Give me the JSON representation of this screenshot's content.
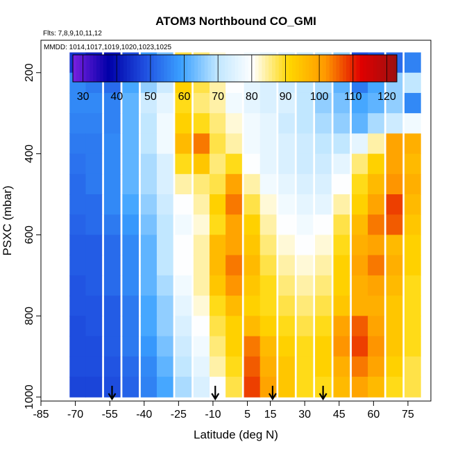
{
  "chart_data": {
    "type": "heatmap",
    "title": "ATOM3 Northbound CO_GMI",
    "subtitle_flights": "Flts: 7,8,9,10,11,12",
    "subtitle_dates": "MMDD: 1014,1017,1019,1020,1023,1025",
    "xlabel": "Latitude (deg N)",
    "ylabel": "PSXC (mbar)",
    "xlim": [
      -85,
      85
    ],
    "ylim": [
      1010,
      120
    ],
    "y_reversed": true,
    "x_ticks": [
      -85,
      -70,
      -55,
      -40,
      -25,
      -10,
      5,
      15,
      30,
      45,
      60,
      75
    ],
    "x_tick_labels": [
      "-85",
      "-70",
      "-55",
      "-40",
      "-25",
      "-10",
      "5",
      "15",
      "30",
      "45",
      "60",
      "75"
    ],
    "y_ticks": [
      200,
      400,
      600,
      800,
      1000
    ],
    "y_tick_labels": [
      "200",
      "400",
      "600",
      "800",
      "1000"
    ],
    "colorbar": {
      "min": 27,
      "max": 123,
      "ticks": [
        30,
        40,
        50,
        60,
        70,
        80,
        90,
        100,
        110,
        120
      ],
      "tick_labels": [
        "30",
        "40",
        "50",
        "60",
        "70",
        "80",
        "90",
        "100",
        "110",
        "120"
      ],
      "colors": [
        "#7a1fe0",
        "#0000a8",
        "#1f4fe0",
        "#3aa0ff",
        "#bfe6ff",
        "#ffffff",
        "#ffd700",
        "#ff9a00",
        "#e00000",
        "#9b1010"
      ]
    },
    "profile_markers_lat": [
      -54,
      -9,
      16,
      38
    ],
    "latitudes": [
      -69,
      -62,
      -54,
      -46,
      -38,
      -31,
      -23,
      -15,
      -8,
      -1,
      7,
      14,
      22,
      30,
      38,
      46,
      54,
      61,
      69,
      77
    ],
    "pressures": [
      175,
      225,
      275,
      325,
      375,
      425,
      475,
      525,
      575,
      625,
      675,
      725,
      775,
      825,
      875,
      925,
      975
    ],
    "values": [
      [
        45,
        42,
        40,
        48,
        58,
        64,
        88,
        86,
        82,
        80,
        78,
        76,
        74,
        72,
        70,
        66,
        48,
        50,
        52,
        55
      ],
      [
        56,
        54,
        52,
        60,
        66,
        72,
        92,
        88,
        84,
        80,
        76,
        74,
        72,
        70,
        68,
        62,
        54,
        60,
        66,
        70
      ],
      [
        56,
        56,
        55,
        62,
        72,
        76,
        90,
        86,
        84,
        78,
        76,
        74,
        74,
        70,
        66,
        64,
        60,
        62,
        66,
        56
      ],
      [
        55,
        55,
        55,
        62,
        70,
        78,
        92,
        90,
        86,
        82,
        78,
        76,
        72,
        70,
        68,
        66,
        62,
        68,
        72,
        78
      ],
      [
        54,
        54,
        56,
        62,
        70,
        78,
        96,
        104,
        88,
        84,
        78,
        76,
        74,
        72,
        70,
        70,
        76,
        84,
        100,
        98
      ],
      [
        53,
        54,
        56,
        62,
        68,
        74,
        90,
        94,
        86,
        90,
        80,
        76,
        74,
        72,
        72,
        76,
        86,
        92,
        100,
        96
      ],
      [
        52,
        54,
        56,
        62,
        68,
        74,
        84,
        86,
        88,
        100,
        84,
        78,
        76,
        74,
        74,
        80,
        90,
        96,
        102,
        98
      ],
      [
        52,
        52,
        56,
        60,
        66,
        72,
        80,
        84,
        92,
        104,
        88,
        82,
        78,
        76,
        76,
        84,
        92,
        100,
        108,
        96
      ],
      [
        51,
        52,
        54,
        58,
        64,
        70,
        78,
        82,
        90,
        100,
        92,
        84,
        80,
        78,
        80,
        88,
        96,
        104,
        106,
        94
      ],
      [
        50,
        50,
        52,
        56,
        62,
        70,
        80,
        84,
        96,
        100,
        94,
        86,
        82,
        80,
        82,
        90,
        98,
        100,
        96,
        92
      ],
      [
        50,
        50,
        52,
        56,
        62,
        70,
        80,
        84,
        96,
        104,
        96,
        88,
        84,
        82,
        84,
        92,
        100,
        104,
        98,
        92
      ],
      [
        49,
        50,
        52,
        56,
        62,
        68,
        78,
        84,
        94,
        102,
        94,
        90,
        86,
        84,
        86,
        92,
        98,
        100,
        96,
        90
      ],
      [
        49,
        49,
        50,
        54,
        60,
        66,
        76,
        82,
        90,
        96,
        92,
        90,
        88,
        86,
        88,
        94,
        98,
        98,
        94,
        90
      ],
      [
        48,
        49,
        50,
        54,
        60,
        66,
        74,
        80,
        88,
        92,
        96,
        92,
        90,
        88,
        90,
        100,
        106,
        100,
        94,
        90
      ],
      [
        48,
        48,
        50,
        54,
        58,
        64,
        72,
        78,
        86,
        92,
        104,
        96,
        92,
        90,
        92,
        102,
        108,
        102,
        94,
        90
      ],
      [
        48,
        48,
        49,
        52,
        56,
        62,
        70,
        76,
        84,
        90,
        106,
        98,
        94,
        90,
        92,
        98,
        104,
        100,
        92,
        88
      ],
      [
        47,
        47,
        48,
        51,
        55,
        60,
        68,
        74,
        80,
        88,
        108,
        100,
        94,
        90,
        90,
        96,
        100,
        96,
        90,
        88
      ]
    ]
  }
}
